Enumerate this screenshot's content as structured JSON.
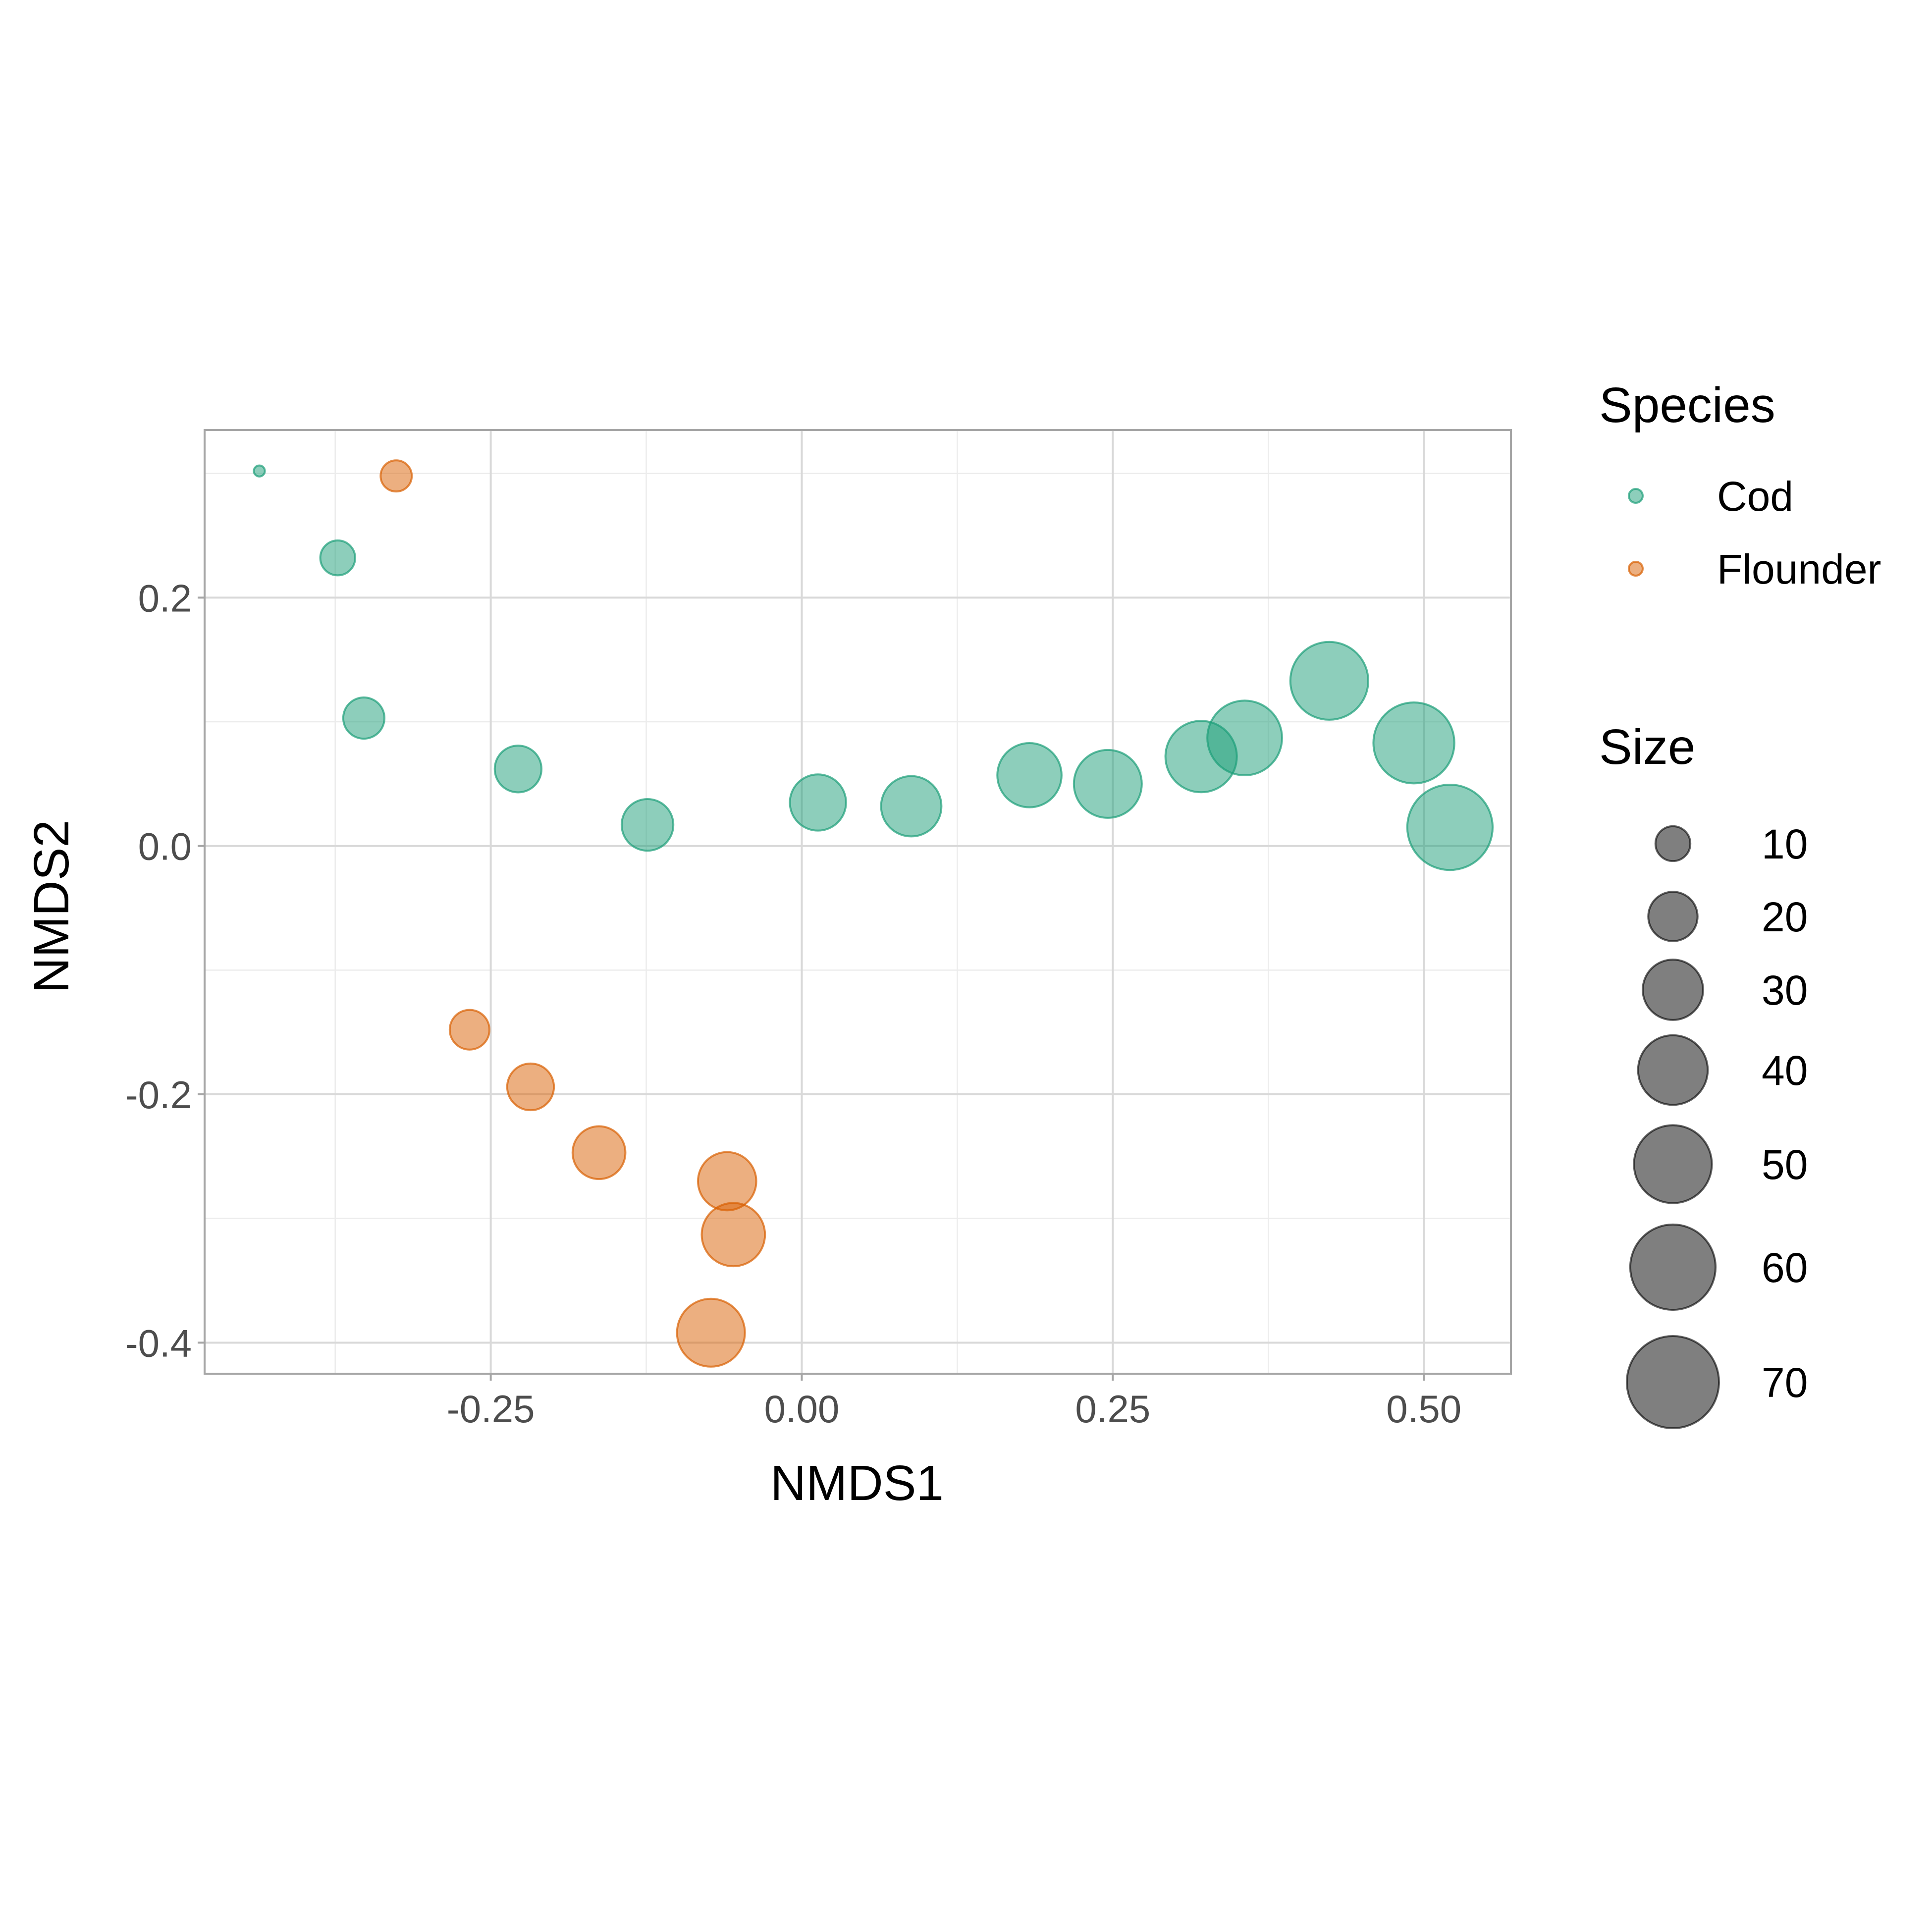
{
  "chart_data": {
    "type": "scatter",
    "xlabel": "NMDS1",
    "ylabel": "NMDS2",
    "xlim": [
      -0.48,
      0.57
    ],
    "ylim": [
      -0.425,
      0.335
    ],
    "x_ticks": [
      -0.25,
      0.0,
      0.25,
      0.5
    ],
    "x_tick_labels": [
      "-0.25",
      "0.00",
      "0.25",
      "0.50"
    ],
    "x_minor": [
      -0.375,
      -0.125,
      0.125,
      0.375
    ],
    "y_ticks": [
      0.2,
      0.0,
      -0.2,
      -0.4
    ],
    "y_tick_labels": [
      "0.2",
      "0.0",
      "-0.2",
      "-0.4"
    ],
    "y_minor": [
      0.3,
      0.1,
      -0.1,
      -0.3
    ],
    "grid": true,
    "legend_placement": "right",
    "colors": {
      "Cod": "#1B9E77",
      "Flounder": "#D95F02",
      "panel_border": "#a6a6a6",
      "grid_major": "#d9d9d9",
      "grid_minor": "#ececec"
    },
    "series": [
      {
        "name": "Cod",
        "points": [
          {
            "x": -0.436,
            "y": 0.302,
            "size": 1
          },
          {
            "x": -0.373,
            "y": 0.232,
            "size": 10
          },
          {
            "x": -0.352,
            "y": 0.103,
            "size": 14
          },
          {
            "x": -0.228,
            "y": 0.062,
            "size": 18
          },
          {
            "x": -0.124,
            "y": 0.017,
            "size": 22
          },
          {
            "x": 0.013,
            "y": 0.035,
            "size": 26
          },
          {
            "x": 0.088,
            "y": 0.032,
            "size": 30
          },
          {
            "x": 0.183,
            "y": 0.057,
            "size": 34
          },
          {
            "x": 0.246,
            "y": 0.05,
            "size": 38
          },
          {
            "x": 0.321,
            "y": 0.072,
            "size": 42
          },
          {
            "x": 0.356,
            "y": 0.087,
            "size": 46
          },
          {
            "x": 0.424,
            "y": 0.133,
            "size": 50
          },
          {
            "x": 0.492,
            "y": 0.083,
            "size": 54
          },
          {
            "x": 0.521,
            "y": 0.015,
            "size": 60
          }
        ]
      },
      {
        "name": "Flounder",
        "points": [
          {
            "x": -0.326,
            "y": 0.298,
            "size": 8
          },
          {
            "x": -0.267,
            "y": -0.148,
            "size": 13
          },
          {
            "x": -0.218,
            "y": -0.194,
            "size": 18
          },
          {
            "x": -0.163,
            "y": -0.247,
            "size": 23
          },
          {
            "x": -0.06,
            "y": -0.27,
            "size": 28
          },
          {
            "x": -0.055,
            "y": -0.313,
            "size": 33
          },
          {
            "x": -0.073,
            "y": -0.392,
            "size": 38
          }
        ]
      }
    ],
    "legend": {
      "species_title": "Species",
      "species_items": [
        "Cod",
        "Flounder"
      ],
      "size_title": "Size",
      "size_items": [
        10,
        20,
        30,
        40,
        50,
        60,
        70
      ],
      "size_item_labels": [
        "10",
        "20",
        "30",
        "40",
        "50",
        "60",
        "70"
      ]
    }
  }
}
